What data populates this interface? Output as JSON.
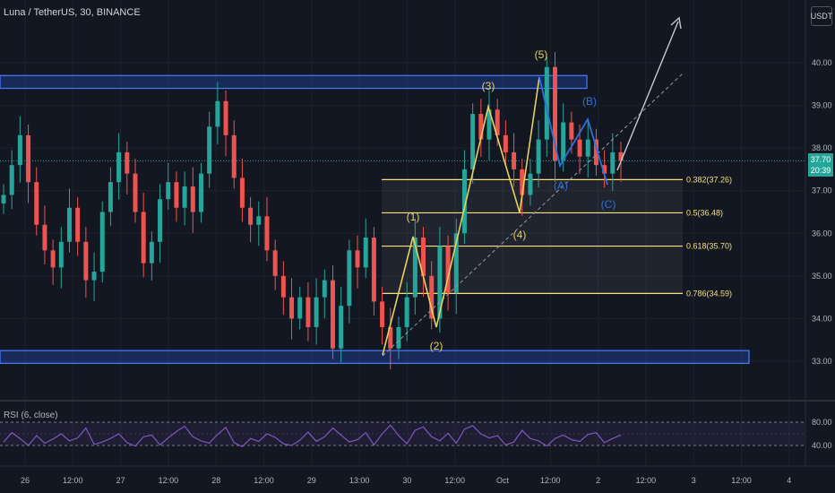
{
  "header": {
    "title": "Luna / TetherUS, 30, BINANCE",
    "currency": "USDT"
  },
  "indicator": {
    "label": "RSI (6, close)"
  },
  "last_price": {
    "value": "37.70",
    "countdown": "20:39"
  },
  "colors": {
    "background": "#131722",
    "up": "#26a69a",
    "down": "#ef5350",
    "zone": "#2962ff",
    "fib": "#f7e07a",
    "impulse": "#e6d060",
    "correction": "#2f6fda",
    "rsi": "#7e57c2"
  },
  "chart_data": {
    "type": "candlestick",
    "title": "Luna / TetherUS, 30, BINANCE",
    "ylim": [
      32.4,
      41.2
    ],
    "y_ticks": [
      "33.00",
      "34.00",
      "35.00",
      "36.00",
      "37.00",
      "38.00",
      "39.00",
      "40.00"
    ],
    "x_ticks": [
      "26",
      "12:00",
      "27",
      "12:00",
      "28",
      "12:00",
      "29",
      "13:00",
      "30",
      "12:00",
      "Oct",
      "12:00",
      "2",
      "12:00",
      "3",
      "12:00",
      "4"
    ],
    "series_close": [
      36.9,
      37.6,
      38.3,
      37.2,
      36.2,
      35.6,
      35.2,
      35.8,
      36.6,
      35.8,
      34.9,
      35.1,
      36.5,
      37.2,
      37.9,
      37.4,
      36.5,
      35.3,
      35.8,
      36.8,
      37.2,
      36.6,
      37.1,
      36.5,
      37.4,
      38.5,
      39.1,
      38.3,
      37.3,
      36.6,
      36.2,
      36.4,
      35.6,
      35.0,
      34.5,
      34.0,
      34.5,
      33.8,
      34.5,
      34.9,
      33.3,
      34.3,
      35.6,
      35.2,
      35.9,
      34.4,
      33.8,
      33.3,
      33.8,
      34.5,
      35.9,
      35.0,
      34.0,
      35.7,
      34.6,
      36.0,
      37.5,
      38.8,
      38.2,
      38.9,
      38.3,
      37.9,
      37.5,
      36.9,
      37.4,
      38.2,
      39.9,
      37.7,
      38.6,
      38.2,
      37.8,
      38.2,
      37.6,
      37.4,
      37.9,
      37.7
    ],
    "fib_levels": [
      {
        "ratio": "0.382",
        "value": 37.26,
        "label": "0.382(37.26)"
      },
      {
        "ratio": "0.5",
        "value": 36.48,
        "label": "0.5(36.48)"
      },
      {
        "ratio": "0.618",
        "value": 35.7,
        "label": "0.618(35.70)"
      },
      {
        "ratio": "0.786",
        "value": 34.59,
        "label": "0.786(34.59)"
      }
    ],
    "zones": [
      {
        "from": 39.4,
        "to": 39.7
      },
      {
        "from": 32.95,
        "to": 33.25
      }
    ],
    "wave_labels": [
      "(1)",
      "(2)",
      "(3)",
      "(4)",
      "(5)",
      "(A)",
      "(B)",
      "(C)"
    ],
    "rsi": {
      "levels": [
        "80.00",
        "40.00"
      ],
      "series": [
        46,
        62,
        52,
        40,
        57,
        44,
        51,
        60,
        48,
        53,
        70,
        42,
        46,
        52,
        60,
        45,
        39,
        55,
        58,
        41,
        53,
        64,
        73,
        55,
        48,
        44,
        59,
        71,
        45,
        38,
        52,
        47,
        60,
        54,
        43,
        40,
        49,
        63,
        47,
        55,
        70,
        58,
        46,
        50,
        62,
        41,
        60,
        75,
        57,
        43,
        66,
        72,
        55,
        48,
        61,
        44,
        68,
        74,
        60,
        53,
        57,
        41,
        46,
        66,
        52,
        48,
        39,
        52,
        58,
        50,
        47,
        59,
        62,
        45,
        52,
        58
      ]
    }
  }
}
